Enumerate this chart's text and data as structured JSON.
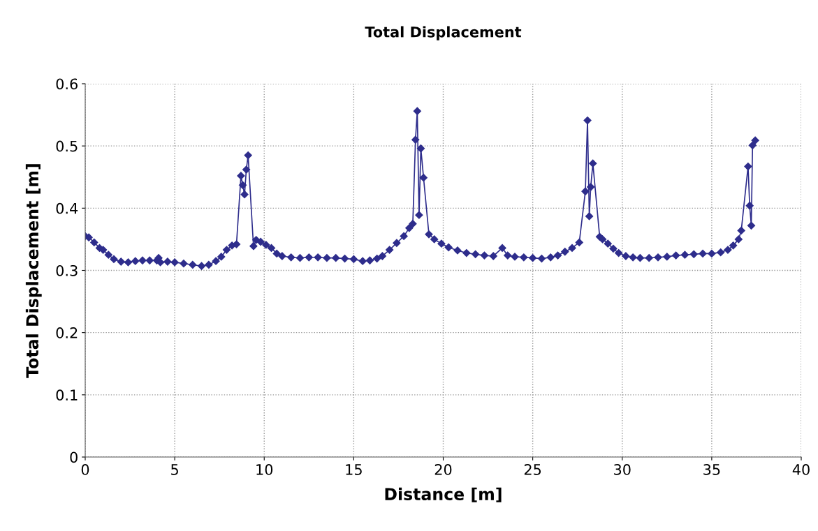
{
  "chart_data": {
    "type": "line",
    "title": "Total Displacement",
    "xlabel": "Distance [m]",
    "ylabel": "Total Displacement [m]",
    "xlim": [
      0,
      40
    ],
    "xticks": [
      0,
      5,
      10,
      15,
      20,
      25,
      30,
      35,
      40
    ],
    "ylim": [
      0,
      0.6
    ],
    "yticks": [
      0,
      0.1,
      0.2,
      0.3,
      0.4,
      0.5,
      0.6
    ],
    "grid": true,
    "marker": "diamond",
    "line_style": "solid",
    "series": [
      {
        "color": "#2e2d8c",
        "x": [
          0,
          0.2,
          0.5,
          0.8,
          1.0,
          1.3,
          1.6,
          2.0,
          2.4,
          2.8,
          3.2,
          3.6,
          4.0,
          4.1,
          4.2,
          4.6,
          5.0,
          5.5,
          6.0,
          6.5,
          6.9,
          7.3,
          7.6,
          7.9,
          8.2,
          8.45,
          8.7,
          8.8,
          8.9,
          9.0,
          9.1,
          9.4,
          9.55,
          9.8,
          10.1,
          10.4,
          10.7,
          11.0,
          11.5,
          12.0,
          12.5,
          13.0,
          13.5,
          14.0,
          14.5,
          15.0,
          15.5,
          15.9,
          16.3,
          16.6,
          17.0,
          17.4,
          17.8,
          18.1,
          18.3,
          18.45,
          18.55,
          18.65,
          18.75,
          18.9,
          19.2,
          19.5,
          19.9,
          20.3,
          20.8,
          21.3,
          21.8,
          22.3,
          22.8,
          23.3,
          23.6,
          24.0,
          24.5,
          25.0,
          25.5,
          26.0,
          26.4,
          26.8,
          27.2,
          27.6,
          27.94,
          28.06,
          28.16,
          28.24,
          28.36,
          28.74,
          28.9,
          29.2,
          29.5,
          29.8,
          30.2,
          30.6,
          31.0,
          31.5,
          32.0,
          32.5,
          33.0,
          33.5,
          34.0,
          34.5,
          35.0,
          35.5,
          35.9,
          36.2,
          36.5,
          36.65,
          37.03,
          37.12,
          37.21,
          37.28,
          37.43
        ],
        "values": [
          0.355,
          0.353,
          0.345,
          0.336,
          0.333,
          0.325,
          0.318,
          0.314,
          0.313,
          0.315,
          0.316,
          0.316,
          0.316,
          0.32,
          0.313,
          0.314,
          0.313,
          0.311,
          0.309,
          0.307,
          0.309,
          0.315,
          0.322,
          0.333,
          0.34,
          0.342,
          0.452,
          0.437,
          0.422,
          0.462,
          0.485,
          0.339,
          0.349,
          0.346,
          0.341,
          0.336,
          0.327,
          0.323,
          0.321,
          0.32,
          0.321,
          0.321,
          0.32,
          0.32,
          0.319,
          0.318,
          0.315,
          0.316,
          0.319,
          0.323,
          0.333,
          0.344,
          0.355,
          0.368,
          0.375,
          0.51,
          0.556,
          0.389,
          0.496,
          0.449,
          0.358,
          0.35,
          0.343,
          0.337,
          0.332,
          0.328,
          0.326,
          0.324,
          0.323,
          0.336,
          0.324,
          0.322,
          0.321,
          0.32,
          0.319,
          0.321,
          0.324,
          0.33,
          0.336,
          0.345,
          0.427,
          0.541,
          0.387,
          0.434,
          0.472,
          0.354,
          0.35,
          0.343,
          0.335,
          0.328,
          0.323,
          0.321,
          0.32,
          0.32,
          0.321,
          0.322,
          0.324,
          0.325,
          0.326,
          0.327,
          0.327,
          0.329,
          0.333,
          0.34,
          0.35,
          0.364,
          0.467,
          0.404,
          0.372,
          0.501,
          0.509
        ]
      }
    ]
  }
}
